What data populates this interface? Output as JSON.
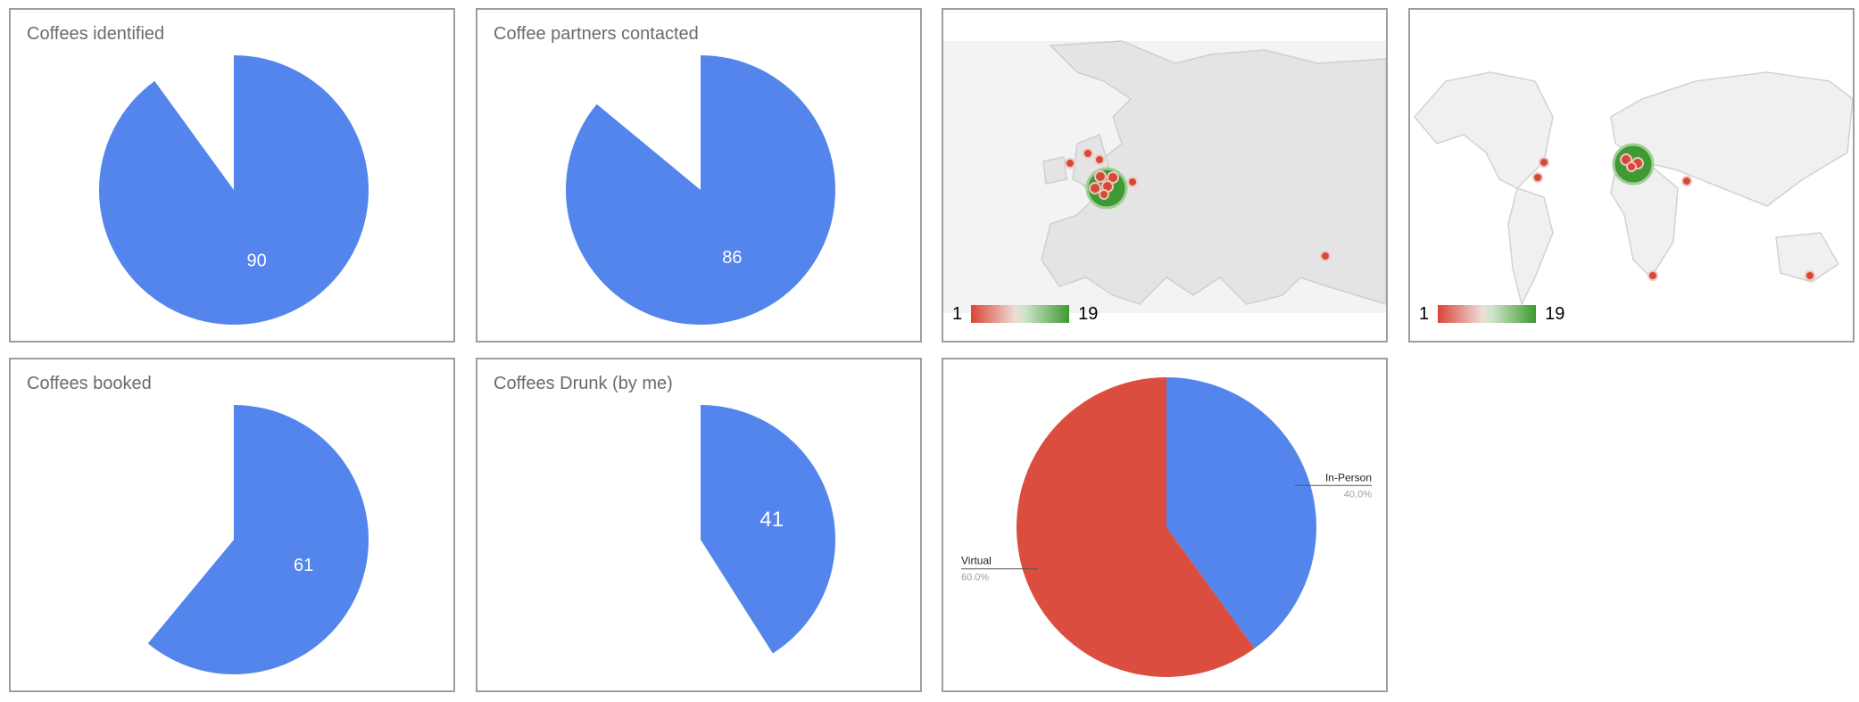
{
  "colors": {
    "slice": "#5385ec",
    "virtual": "#db4e3f",
    "inperson": "#5385ec",
    "marker": "#d24a38",
    "cluster": "#3f9a33"
  },
  "panels": {
    "p1": {
      "title": "Coffees identified"
    },
    "p2": {
      "title": "Coffee partners contacted"
    },
    "p3": {
      "legend_min": "1",
      "legend_max": "19"
    },
    "p4": {
      "legend_min": "1",
      "legend_max": "19"
    },
    "p5": {
      "title": "Coffees booked"
    },
    "p6": {
      "title": "Coffees Drunk (by me)"
    }
  },
  "chart_data": [
    {
      "type": "pie",
      "title": "Coffees identified",
      "values": [
        90
      ],
      "max": 100,
      "labels": [
        "90"
      ]
    },
    {
      "type": "pie",
      "title": "Coffee partners contacted",
      "values": [
        86
      ],
      "max": 100,
      "labels": [
        "86"
      ]
    },
    {
      "type": "geo",
      "region": "Europe",
      "legend": {
        "min": 1,
        "max": 19
      }
    },
    {
      "type": "geo",
      "region": "World",
      "legend": {
        "min": 1,
        "max": 19
      }
    },
    {
      "type": "pie",
      "title": "Coffees booked",
      "values": [
        61
      ],
      "max": 100,
      "labels": [
        "61"
      ]
    },
    {
      "type": "pie",
      "title": "Coffees Drunk (by me)",
      "values": [
        41
      ],
      "max": 100,
      "labels": [
        "41"
      ]
    },
    {
      "type": "pie",
      "categories": [
        "In-Person",
        "Virtual"
      ],
      "values": [
        40.0,
        60.0
      ],
      "labels": [
        "40.0%",
        "60.0%"
      ]
    }
  ]
}
